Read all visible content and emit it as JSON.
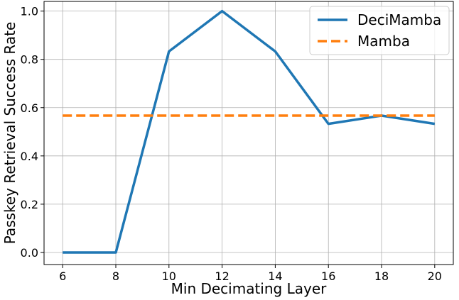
{
  "chart_data": {
    "type": "line",
    "title": "",
    "xlabel": "Min Decimating Layer",
    "ylabel": "Passkey Retrieval Success Rate",
    "xlim": [
      5.3,
      20.7
    ],
    "ylim": [
      -0.05,
      1.04
    ],
    "x_ticks": [
      6,
      8,
      10,
      12,
      14,
      16,
      18,
      20
    ],
    "x_tick_labels": [
      "6",
      "8",
      "10",
      "12",
      "14",
      "16",
      "18",
      "20"
    ],
    "y_ticks": [
      0.0,
      0.2,
      0.4,
      0.6,
      0.8,
      1.0
    ],
    "y_tick_labels": [
      "0.0",
      "0.2",
      "0.4",
      "0.6",
      "0.8",
      "1.0"
    ],
    "grid": true,
    "legend_position": "top-right",
    "series": [
      {
        "name": "DeciMamba",
        "color": "#1f77b4",
        "style": "solid",
        "x": [
          6,
          8,
          10,
          12,
          14,
          16,
          18,
          20
        ],
        "y": [
          0.0,
          0.0,
          0.833,
          1.0,
          0.833,
          0.533,
          0.567,
          0.533
        ]
      },
      {
        "name": "Mamba",
        "color": "#ff7f0e",
        "style": "dashed",
        "x": [
          6,
          20
        ],
        "y": [
          0.567,
          0.567
        ]
      }
    ]
  }
}
